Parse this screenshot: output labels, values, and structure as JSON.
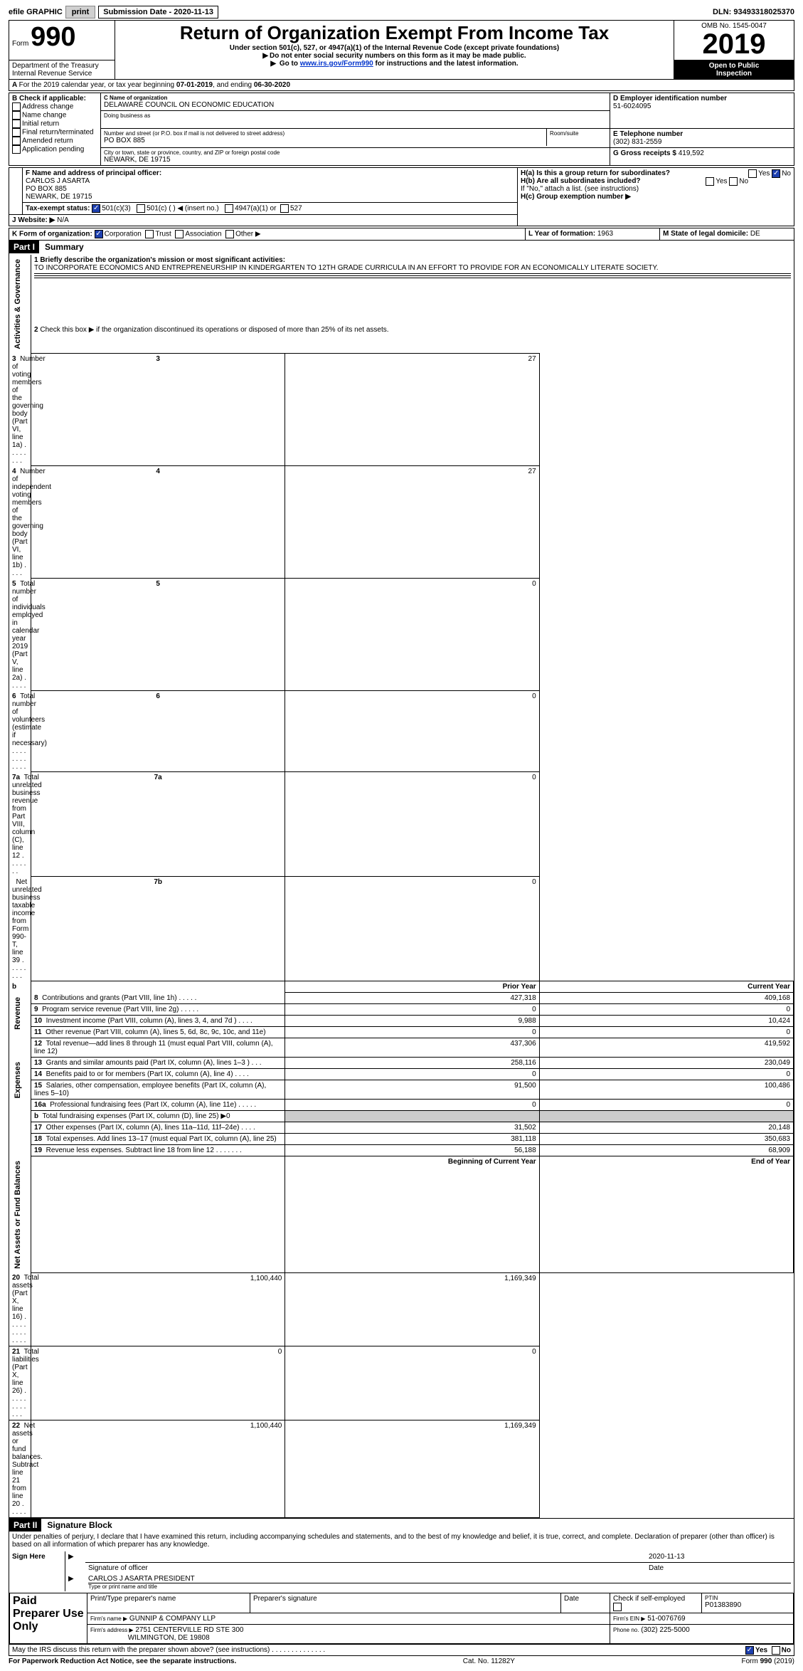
{
  "topbar": {
    "efile": "efile GRAPHIC",
    "print_btn": "print",
    "sub_date_label": "Submission Date",
    "sub_date": "2020-11-13",
    "dln": "DLN: 93493318025370"
  },
  "header": {
    "form_label": "Form",
    "form_number": "990",
    "title": "Return of Organization Exempt From Income Tax",
    "subtitle": "Under section 501(c), 527, or 4947(a)(1) of the Internal Revenue Code (except private foundations)",
    "note1": "Do not enter social security numbers on this form as it may be made public.",
    "note2_prefix": "Go to ",
    "note2_link": "www.irs.gov/Form990",
    "note2_suffix": " for instructions and the latest information.",
    "dept1": "Department of the Treasury",
    "dept2": "Internal Revenue Service",
    "omb_label": "OMB No. 1545-0047",
    "year": "2019",
    "open_public1": "Open to Public",
    "open_public2": "Inspection"
  },
  "periodA": {
    "prefix": "For the 2019 calendar year, or tax year beginning ",
    "start": "07-01-2019",
    "mid": ", and ending ",
    "end": "06-30-2020"
  },
  "boxB": {
    "label": "B Check if applicable:",
    "opt1": "Address change",
    "opt2": "Name change",
    "opt3": "Initial return",
    "opt4": "Final return/terminated",
    "opt5": "Amended return",
    "opt6": "Application pending"
  },
  "boxC": {
    "name_label": "C Name of organization",
    "name": "DELAWARE COUNCIL ON ECONOMIC EDUCATION",
    "dba_label": "Doing business as",
    "street_label": "Number and street (or P.O. box if mail is not delivered to street address)",
    "room_label": "Room/suite",
    "street": "PO BOX 885",
    "city_label": "City or town, state or province, country, and ZIP or foreign postal code",
    "city": "NEWARK, DE  19715"
  },
  "boxD": {
    "label": "D Employer identification number",
    "val": "51-6024095"
  },
  "boxE": {
    "label": "E Telephone number",
    "val": "(302) 831-2559"
  },
  "boxG": {
    "label": "G Gross receipts $",
    "val": "419,592"
  },
  "boxF": {
    "label": "F  Name and address of principal officer:",
    "l1": "CARLOS J ASARTA",
    "l2": "PO BOX 885",
    "l3": "NEWARK, DE  19715"
  },
  "boxH": {
    "a_label": "H(a)  Is this a group return for subordinates?",
    "b_label": "H(b)  Are all subordinates included?",
    "b_note": "If \"No,\" attach a list. (see instructions)",
    "c_label": "H(c)  Group exemption number ▶",
    "yes": "Yes",
    "no": "No"
  },
  "boxI": {
    "label": "Tax-exempt status:",
    "o1": "501(c)(3)",
    "o2": "501(c) (  ) ◀ (insert no.)",
    "o3": "4947(a)(1) or",
    "o4": "527"
  },
  "boxJ": {
    "label": "J    Website: ▶",
    "val": "N/A"
  },
  "boxK": {
    "label": "K Form of organization:",
    "o1": "Corporation",
    "o2": "Trust",
    "o3": "Association",
    "o4": "Other ▶"
  },
  "boxL": {
    "label": "L Year of formation:",
    "val": "1963"
  },
  "boxM": {
    "label": "M State of legal domicile:",
    "val": "DE"
  },
  "part1": {
    "header": "Part I",
    "label": "Summary",
    "q1_label": "1   Briefly describe the organization's mission or most significant activities:",
    "q1_text": "TO INCORPORATE ECONOMICS AND ENTREPRENEURSHIP IN KINDERGARTEN TO 12TH GRADE CURRICULA IN AN EFFORT TO PROVIDE FOR AN ECONOMICALLY LITERATE SOCIETY.",
    "q2": "Check this box ▶      if the organization discontinued its operations or disposed of more than 25% of its net assets.",
    "sideA": "Activities & Governance",
    "sideR": "Revenue",
    "sideE": "Expenses",
    "sideN": "Net Assets or Fund Balances",
    "prior": "Prior Year",
    "current": "Current Year",
    "boy": "Beginning of Current Year",
    "eoy": "End of Year",
    "rows_gov": [
      {
        "n": "3",
        "t": "Number of voting members of the governing body (Part VI, line 1a)  .   .   .   .   .   .   .   .",
        "c": "3",
        "v": "27"
      },
      {
        "n": "4",
        "t": "Number of independent voting members of the governing body (Part VI, line 1b)   .   .   .   .",
        "c": "4",
        "v": "27"
      },
      {
        "n": "5",
        "t": "Total number of individuals employed in calendar year 2019 (Part V, line 2a)   .   .   .   .   .",
        "c": "5",
        "v": "0"
      },
      {
        "n": "6",
        "t": "Total number of volunteers (estimate if necessary)    .   .   .   .   .   .   .   .   .   .   .   .",
        "c": "6",
        "v": "0"
      },
      {
        "n": "7a",
        "t": "Total unrelated business revenue from Part VIII, column (C), line 12   .   .   .   .   .   .   .",
        "c": "7a",
        "v": "0"
      },
      {
        "n": "",
        "t": "Net unrelated business taxable income from Form 990-T, line 39   .   .   .   .   .   .   .   .",
        "c": "7b",
        "v": "0"
      }
    ],
    "rows_rev": [
      {
        "n": "8",
        "t": "Contributions and grants (Part VIII, line 1h)   .   .   .   .   .",
        "p": "427,318",
        "c": "409,168"
      },
      {
        "n": "9",
        "t": "Program service revenue (Part VIII, line 2g)   .   .   .   .   .",
        "p": "0",
        "c": "0"
      },
      {
        "n": "10",
        "t": "Investment income (Part VIII, column (A), lines 3, 4, and 7d )   .   .   .   .",
        "p": "9,988",
        "c": "10,424"
      },
      {
        "n": "11",
        "t": "Other revenue (Part VIII, column (A), lines 5, 6d, 8c, 9c, 10c, and 11e)",
        "p": "0",
        "c": "0"
      },
      {
        "n": "12",
        "t": "Total revenue—add lines 8 through 11 (must equal Part VIII, column (A), line 12)",
        "p": "437,306",
        "c": "419,592"
      }
    ],
    "rows_exp": [
      {
        "n": "13",
        "t": "Grants and similar amounts paid (Part IX, column (A), lines 1–3 )   .   .   .",
        "p": "258,116",
        "c": "230,049"
      },
      {
        "n": "14",
        "t": "Benefits paid to or for members (Part IX, column (A), line 4)   .   .   .   .",
        "p": "0",
        "c": "0"
      },
      {
        "n": "15",
        "t": "Salaries, other compensation, employee benefits (Part IX, column (A), lines 5–10)",
        "p": "91,500",
        "c": "100,486"
      },
      {
        "n": "16a",
        "t": "Professional fundraising fees (Part IX, column (A), line 11e)   .   .   .   .   .",
        "p": "0",
        "c": "0"
      },
      {
        "n": "b",
        "t": "Total fundraising expenses (Part IX, column (D), line 25) ▶0",
        "p": "",
        "c": "",
        "shade": true
      },
      {
        "n": "17",
        "t": "Other expenses (Part IX, column (A), lines 11a–11d, 11f–24e)   .   .   .   .",
        "p": "31,502",
        "c": "20,148"
      },
      {
        "n": "18",
        "t": "Total expenses. Add lines 13–17 (must equal Part IX, column (A), line 25)",
        "p": "381,118",
        "c": "350,683"
      },
      {
        "n": "19",
        "t": "Revenue less expenses. Subtract line 18 from line 12  .   .   .   .   .   .   .",
        "p": "56,188",
        "c": "68,909"
      }
    ],
    "rows_net": [
      {
        "n": "20",
        "t": "Total assets (Part X, line 16)   .   .   .   .   .   .   .   .   .   .   .   .   .",
        "p": "1,100,440",
        "c": "1,169,349"
      },
      {
        "n": "21",
        "t": "Total liabilities (Part X, line 26)   .   .   .   .   .   .   .   .   .   .   .   .",
        "p": "0",
        "c": "0"
      },
      {
        "n": "22",
        "t": "Net assets or fund balances. Subtract line 21 from line 20   .   .   .   .   .",
        "p": "1,100,440",
        "c": "1,169,349"
      }
    ]
  },
  "part2": {
    "header": "Part II",
    "label": "Signature Block",
    "declaration": "Under penalties of perjury, I declare that I have examined this return, including accompanying schedules and statements, and to the best of my knowledge and belief, it is true, correct, and complete. Declaration of preparer (other than officer) is based on all information of which preparer has any knowledge.",
    "sign_here": "Sign Here",
    "sig_officer": "Signature of officer",
    "date": "Date",
    "date_val": "2020-11-13",
    "name_title": "CARLOS J ASARTA  PRESIDENT",
    "name_title_label": "Type or print name and title",
    "paid": "Paid Preparer Use Only",
    "prep_name": "Print/Type preparer's name",
    "prep_sig": "Preparer's signature",
    "prep_date": "Date",
    "self_emp": "Check      if self-employed",
    "ptin_label": "PTIN",
    "ptin": "P01383890",
    "firm_name": "Firm's name    ▶",
    "firm_name_val": "GUNNIP & COMPANY LLP",
    "firm_ein": "Firm's EIN ▶",
    "firm_ein_val": "51-0076769",
    "firm_addr": "Firm's address ▶",
    "firm_addr_val1": "2751 CENTERVILLE RD STE 300",
    "firm_addr_val2": "WILMINGTON, DE  19808",
    "phone": "Phone no.",
    "phone_val": "(302) 225-5000",
    "discuss": "May the IRS discuss this return with the preparer shown above? (see instructions)   .   .   .   .   .   .   .   .   .   .   .   .   .   .",
    "yes": "Yes",
    "no": "No"
  },
  "footer": {
    "pra": "For Paperwork Reduction Act Notice, see the separate instructions.",
    "cat": "Cat. No. 11282Y",
    "form": "Form 990 (2019)"
  }
}
